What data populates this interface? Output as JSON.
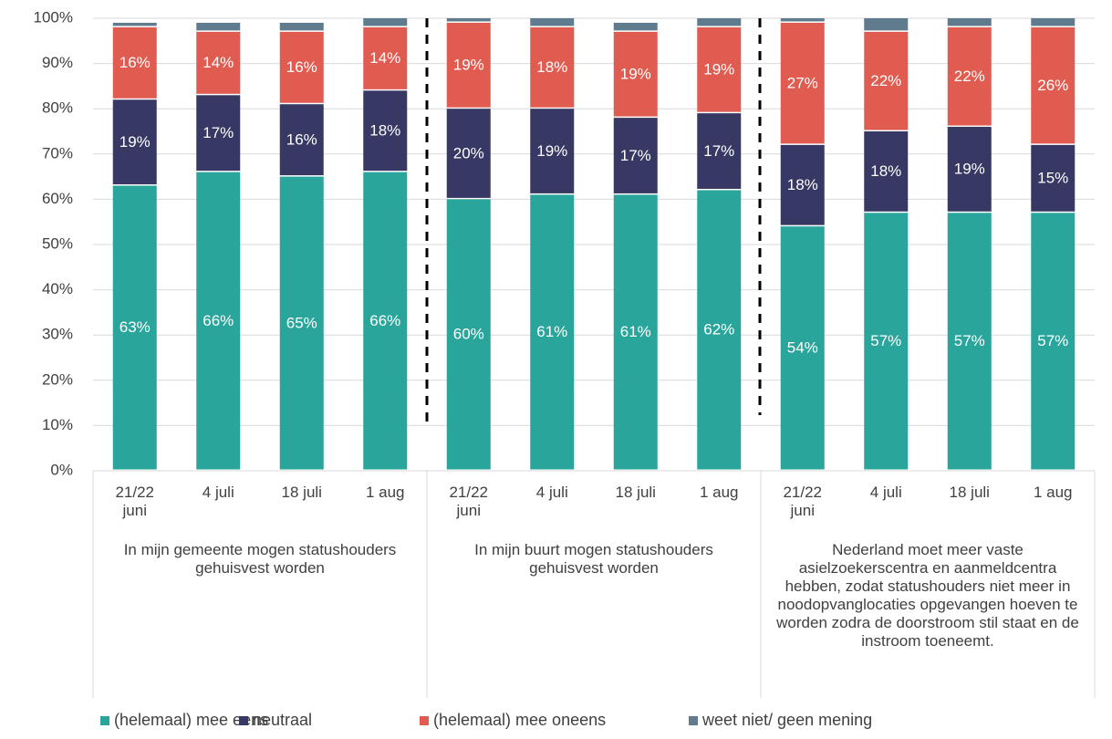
{
  "chart_data": {
    "type": "stacked_bar",
    "categories": [
      "21/22 juni",
      "4 juli",
      "18 juli",
      "1 aug",
      "21/22 juni",
      "4 juli",
      "18 juli",
      "1 aug",
      "21/22 juni",
      "4 juli",
      "18 juli",
      "1 aug"
    ],
    "group_labels": [
      "In mijn gemeente mogen statushouders gehuisvest worden",
      "In mijn buurt mogen statushouders gehuisvest worden",
      "Nederland moet meer vaste asielzoekerscentra en aanmeldcentra hebben, zodat statushouders niet meer in noodopvanglocaties opgevangen hoeven te worden zodra de doorstroom stil staat en de instroom toeneemt."
    ],
    "series": [
      {
        "name": "(helemaal) mee eens",
        "color": "#2aa59b",
        "values": [
          63,
          66,
          65,
          66,
          60,
          61,
          61,
          62,
          54,
          57,
          57,
          57
        ],
        "value_labels": [
          "63%",
          "66%",
          "65%",
          "66%",
          "60%",
          "61%",
          "61%",
          "62%",
          "54%",
          "57%",
          "57%",
          "57%"
        ]
      },
      {
        "name": "neutraal",
        "color": "#373863",
        "values": [
          19,
          17,
          16,
          18,
          20,
          19,
          17,
          17,
          18,
          18,
          19,
          15
        ],
        "value_labels": [
          "19%",
          "17%",
          "16%",
          "18%",
          "20%",
          "19%",
          "17%",
          "17%",
          "18%",
          "18%",
          "19%",
          "15%"
        ]
      },
      {
        "name": "(helemaal) mee oneens",
        "color": "#e05c50",
        "values": [
          16,
          14,
          16,
          14,
          19,
          18,
          19,
          19,
          27,
          22,
          22,
          26
        ],
        "value_labels": [
          "16%",
          "14%",
          "16%",
          "14%",
          "19%",
          "18%",
          "19%",
          "19%",
          "27%",
          "22%",
          "22%",
          "26%"
        ]
      },
      {
        "name": "weet niet/ geen mening",
        "color": "#607b8d",
        "values": [
          1,
          2,
          2,
          2,
          1,
          2,
          2,
          2,
          1,
          3,
          2,
          2
        ]
      }
    ],
    "ylim": [
      0,
      100
    ],
    "yticks": [
      {
        "value": 0,
        "label": "0%"
      },
      {
        "value": 10,
        "label": "10%"
      },
      {
        "value": 20,
        "label": "20%"
      },
      {
        "value": 30,
        "label": "30%"
      },
      {
        "value": 40,
        "label": "40%"
      },
      {
        "value": 50,
        "label": "50%"
      },
      {
        "value": 60,
        "label": "60%"
      },
      {
        "value": 70,
        "label": "70%"
      },
      {
        "value": 80,
        "label": "80%"
      },
      {
        "value": 90,
        "label": "90%"
      },
      {
        "value": 100,
        "label": "100%"
      }
    ],
    "grid": true
  }
}
